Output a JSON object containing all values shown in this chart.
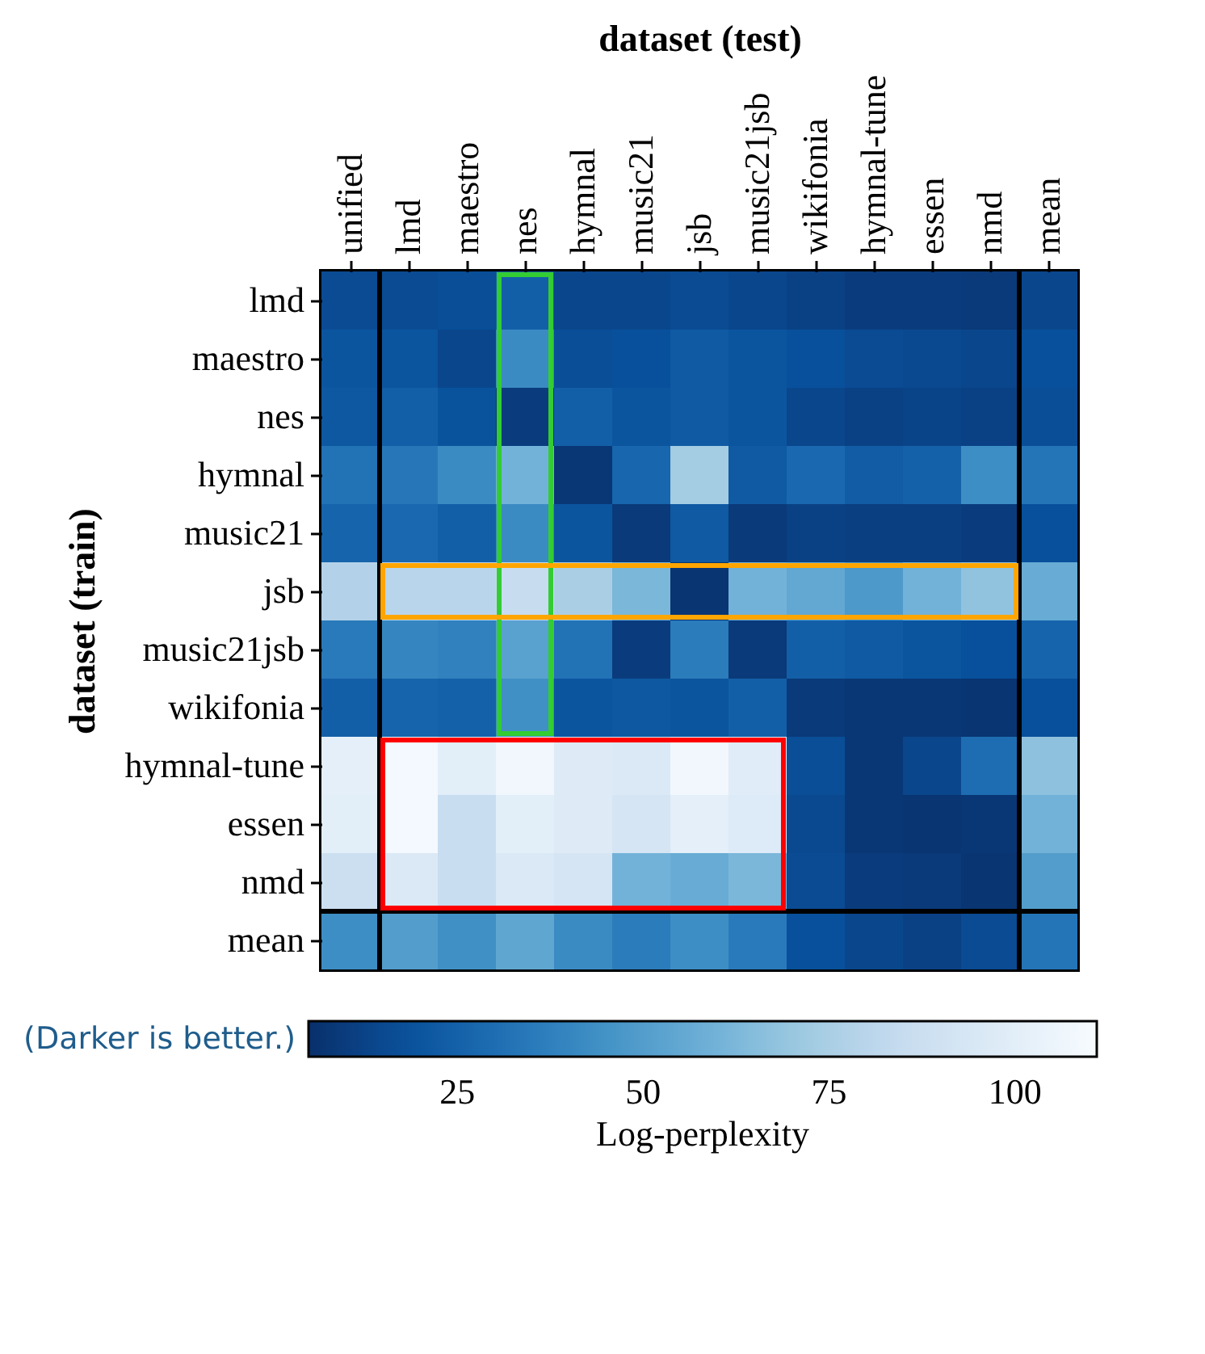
{
  "chart_data": {
    "type": "heatmap",
    "xlabel": "dataset (test)",
    "ylabel": "dataset (train)",
    "clabel": "Log-perplexity",
    "annotations": [
      "(Darker is better.)"
    ],
    "categories": [
      "unified",
      "lmd",
      "maestro",
      "nes",
      "hymnal",
      "music21",
      "jsb",
      "music21jsb",
      "wikifonia",
      "hymnal-tune",
      "essen",
      "nmd",
      "mean"
    ],
    "y_categories": [
      "lmd",
      "maestro",
      "nes",
      "hymnal",
      "music21",
      "jsb",
      "music21jsb",
      "wikifonia",
      "hymnal-tune",
      "essen",
      "nmd",
      "mean"
    ],
    "cells": [
      [
        16,
        16,
        17,
        24,
        14,
        14,
        16,
        14,
        12,
        10,
        10,
        9,
        14
      ],
      [
        20,
        20,
        14,
        42,
        17,
        18,
        22,
        20,
        18,
        16,
        15,
        14,
        18
      ],
      [
        21,
        24,
        19,
        10,
        24,
        20,
        22,
        20,
        14,
        12,
        13,
        12,
        17
      ],
      [
        32,
        34,
        42,
        60,
        8,
        27,
        73,
        22,
        28,
        23,
        25,
        43,
        33
      ],
      [
        26,
        28,
        24,
        42,
        20,
        9,
        22,
        9,
        12,
        11,
        11,
        10,
        18
      ],
      [
        78,
        80,
        80,
        85,
        75,
        62,
        7,
        60,
        55,
        48,
        60,
        68,
        57
      ],
      [
        35,
        40,
        38,
        52,
        32,
        10,
        36,
        9,
        24,
        22,
        20,
        18,
        26
      ],
      [
        24,
        26,
        25,
        44,
        20,
        21,
        20,
        24,
        9,
        8,
        8,
        7,
        18
      ],
      [
        101,
        109,
        100,
        108,
        98,
        96,
        108,
        99,
        17,
        8,
        14,
        30,
        67
      ],
      [
        100,
        109,
        86,
        100,
        98,
        93,
        101,
        97,
        15,
        8,
        7,
        8,
        60
      ],
      [
        88,
        96,
        86,
        96,
        93,
        60,
        57,
        62,
        16,
        10,
        9,
        7,
        50
      ],
      [
        43,
        50,
        44,
        54,
        42,
        36,
        43,
        35,
        18,
        14,
        12,
        16,
        33
      ]
    ],
    "clim": [
      5,
      111
    ],
    "cticks": [
      25,
      50,
      75,
      100
    ]
  }
}
